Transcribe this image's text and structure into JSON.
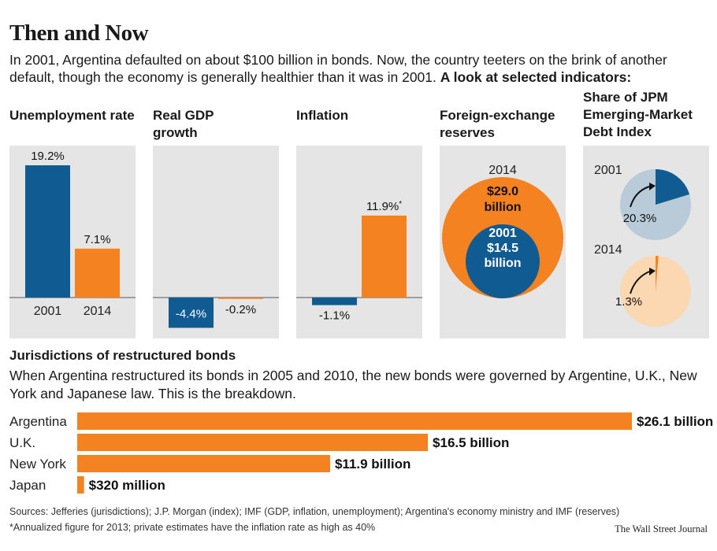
{
  "header": {
    "title": "Then and Now",
    "intro": "In 2001, Argentina defaulted on about $100 billion in bonds. Now, the country teeters on the brink of another default, though the economy is generally healthier than it was in 2001.",
    "intro_bold": "A look at selected indicators:"
  },
  "colors": {
    "y2001": "#0f5b92",
    "y2014": "#f58220",
    "panel": "#e5e5e5",
    "light2001": "#b9cbd8",
    "light2014": "#fbd8b2"
  },
  "chart_data": [
    {
      "type": "bar",
      "title": "Unemployment rate",
      "categories": [
        "2001",
        "2014"
      ],
      "values": [
        19.2,
        7.1
      ],
      "labels": [
        "19.2%",
        "7.1%"
      ],
      "ylim": [
        0,
        22
      ]
    },
    {
      "type": "bar",
      "title": "Real GDP growth",
      "categories": [
        "2001",
        "2014"
      ],
      "values": [
        -4.4,
        -0.2
      ],
      "labels": [
        "-4.4%",
        "-0.2%"
      ]
    },
    {
      "type": "bar",
      "title": "Inflation",
      "categories": [
        "2001",
        "2014"
      ],
      "values": [
        -1.1,
        11.9
      ],
      "labels": [
        "-1.1%",
        "11.9%"
      ],
      "footnote_marker": "*"
    },
    {
      "type": "nested-circle",
      "title": "Foreign-exchange reserves",
      "series": [
        {
          "year": "2014",
          "value": 29.0,
          "value_label": "$29.0",
          "unit": "billion"
        },
        {
          "year": "2001",
          "value": 14.5,
          "value_label": "$14.5",
          "unit": "billion"
        }
      ]
    },
    {
      "type": "pie",
      "title": "Share of JPM Emerging-Market Debt Index",
      "series": [
        {
          "year": "2001",
          "share": 20.3,
          "label": "20.3%"
        },
        {
          "year": "2014",
          "share": 1.3,
          "label": "1.3%"
        }
      ]
    },
    {
      "type": "bar",
      "orientation": "horizontal",
      "title": "Jurisdictions of restructured bonds",
      "categories": [
        "Argentina",
        "U.K.",
        "New York",
        "Japan"
      ],
      "values": [
        26.1,
        16.5,
        11.9,
        0.32
      ],
      "labels": [
        "$26.1 billion",
        "$16.5 billion",
        "$11.9 billion",
        "$320 million"
      ],
      "unit": "billion dollars"
    }
  ],
  "section": {
    "title": "Jurisdictions of restructured bonds",
    "desc": "When Argentina restructured its bonds in 2005 and 2010, the new bonds were governed by Argentine, U.K., New York and Japanese law. This is the breakdown."
  },
  "footer": {
    "sources": "Sources: Jefferies (jurisdictions); J.P. Morgan (index); IMF (GDP, inflation, unemployment); Argentina's economy ministry and IMF (reserves)",
    "note": "*Annualized figure for 2013; private estimates have the inflation rate as high as 40%",
    "credit": "The Wall Street Journal"
  }
}
